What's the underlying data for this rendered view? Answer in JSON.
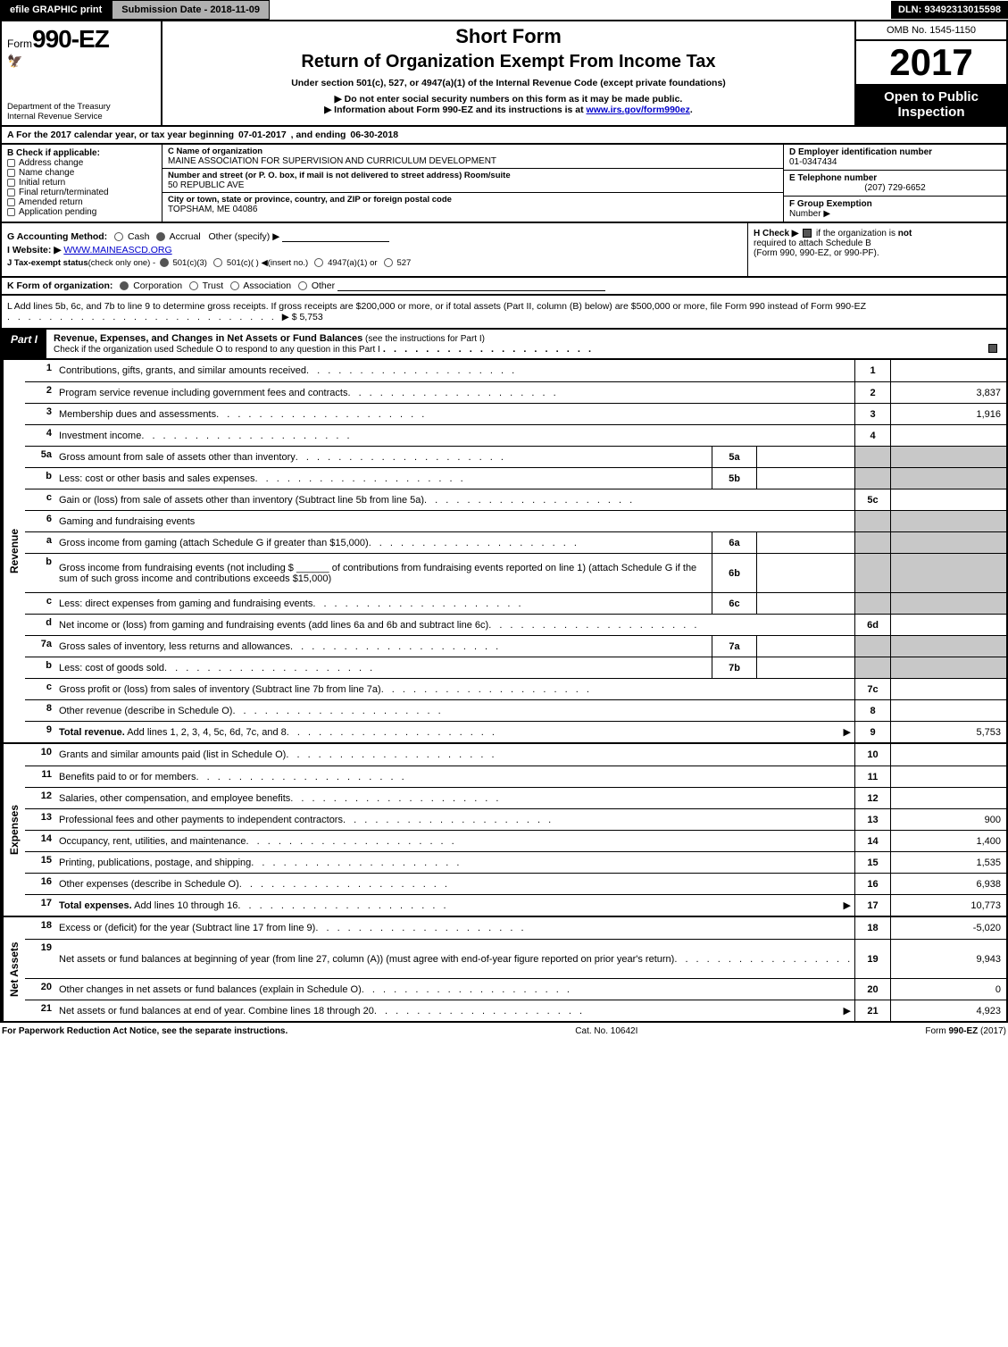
{
  "topbar": {
    "efile_btn": "efile GRAPHIC print",
    "submission_btn": "Submission Date - 2018-11-09",
    "dln": "DLN: 93492313015598"
  },
  "header": {
    "form_prefix": "Form",
    "form_number": "990-EZ",
    "dept1": "Department of the Treasury",
    "dept2": "Internal Revenue Service",
    "short_form": "Short Form",
    "title": "Return of Organization Exempt From Income Tax",
    "under_section": "Under section 501(c), 527, or 4947(a)(1) of the Internal Revenue Code (except private foundations)",
    "arrow1": "▶ Do not enter social security numbers on this form as it may be made public.",
    "arrow2_pre": "▶ Information about Form 990-EZ and its instructions is at ",
    "arrow2_link": "www.irs.gov/form990ez",
    "arrow2_post": ".",
    "omb": "OMB No. 1545-1150",
    "tax_year": "2017",
    "open_pub1": "Open to Public",
    "open_pub2": "Inspection"
  },
  "line_A": {
    "text_pre": "A  For the 2017 calendar year, or tax year beginning ",
    "ty_begin": "07-01-2017",
    "mid": " , and ending ",
    "ty_end": "06-30-2018"
  },
  "section_B": {
    "header": "B  Check if applicable:",
    "opts": [
      "Address change",
      "Name change",
      "Initial return",
      "Final return/terminated",
      "Amended return",
      "Application pending"
    ]
  },
  "section_C": {
    "name_lbl": "C Name of organization",
    "name_val": "MAINE ASSOCIATION FOR SUPERVISION AND CURRICULUM DEVELOPMENT",
    "street_lbl": "Number and street (or P. O. box, if mail is not delivered to street address)    Room/suite",
    "street_val": "50 REPUBLIC AVE",
    "city_lbl": "City or town, state or province, country, and ZIP or foreign postal code",
    "city_val": "TOPSHAM, ME  04086"
  },
  "section_right": {
    "D_lbl": "D Employer identification number",
    "D_val": "01-0347434",
    "E_lbl": "E Telephone number",
    "E_val": "(207) 729-6652",
    "F_lbl": "F Group Exemption",
    "F_lbl2": "Number  ▶"
  },
  "line_G": {
    "lbl": "G Accounting Method:",
    "cash": "Cash",
    "accrual": "Accrual",
    "other": "Other (specify) ▶"
  },
  "line_H": {
    "lbl": "H  Check ▶",
    "txt1": "if the organization is ",
    "not": "not",
    "txt2": "required to attach Schedule B",
    "txt3": "(Form 990, 990-EZ, or 990-PF)."
  },
  "line_I": {
    "lbl": "I Website: ▶",
    "val": "WWW.MAINEASCD.ORG"
  },
  "line_J": {
    "lbl": "J Tax-exempt status",
    "paren": "(check only one) - ",
    "o1": "501(c)(3)",
    "o2": "501(c)(  )",
    "o2_note": "◀(insert no.)",
    "o3": "4947(a)(1) or",
    "o4": "527"
  },
  "line_K": {
    "lbl": "K Form of organization:",
    "opts": [
      "Corporation",
      "Trust",
      "Association",
      "Other"
    ]
  },
  "line_L": {
    "text": "L Add lines 5b, 6c, and 7b to line 9 to determine gross receipts. If gross receipts are $200,000 or more, or if total assets (Part II, column (B) below) are $500,000 or more, file Form 990 instead of Form 990-EZ",
    "amount": "▶ $ 5,753"
  },
  "part1": {
    "tag": "Part I",
    "title": "Revenue, Expenses, and Changes in Net Assets or Fund Balances",
    "title_note": " (see the instructions for Part I)",
    "sub": "Check if the organization used Schedule O to respond to any question in this Part I"
  },
  "side": {
    "revenue": "Revenue",
    "expenses": "Expenses",
    "netassets": "Net Assets"
  },
  "lines_rev": [
    {
      "n": "1",
      "desc": "Contributions, gifts, grants, and similar amounts received",
      "ref": "1",
      "amt": ""
    },
    {
      "n": "2",
      "desc": "Program service revenue including government fees and contracts",
      "ref": "2",
      "amt": "3,837"
    },
    {
      "n": "3",
      "desc": "Membership dues and assessments",
      "ref": "3",
      "amt": "1,916"
    },
    {
      "n": "4",
      "desc": "Investment income",
      "ref": "4",
      "amt": ""
    },
    {
      "n": "5a",
      "desc": "Gross amount from sale of assets other than inventory",
      "sub": "5a",
      "subamt": ""
    },
    {
      "n": "b",
      "desc": "Less: cost or other basis and sales expenses",
      "sub": "5b",
      "subamt": ""
    },
    {
      "n": "c",
      "desc": "Gain or (loss) from sale of assets other than inventory (Subtract line 5b from line 5a)",
      "ref": "5c",
      "amt": ""
    },
    {
      "n": "6",
      "desc": "Gaming and fundraising events",
      "full": true
    },
    {
      "n": "a",
      "desc": "Gross income from gaming (attach Schedule G if greater than $15,000)",
      "sub": "6a",
      "subamt": ""
    },
    {
      "n": "b",
      "desc": "Gross income from fundraising events (not including $ ______ of contributions from fundraising events reported on line 1) (attach Schedule G if the sum of such gross income and contributions exceeds $15,000)",
      "sub": "6b",
      "subamt": "",
      "tall": true
    },
    {
      "n": "c",
      "desc": "Less: direct expenses from gaming and fundraising events",
      "sub": "6c",
      "subamt": ""
    },
    {
      "n": "d",
      "desc": "Net income or (loss) from gaming and fundraising events (add lines 6a and 6b and subtract line 6c)",
      "ref": "6d",
      "amt": ""
    },
    {
      "n": "7a",
      "desc": "Gross sales of inventory, less returns and allowances",
      "sub": "7a",
      "subamt": ""
    },
    {
      "n": "b",
      "desc": "Less: cost of goods sold",
      "sub": "7b",
      "subamt": ""
    },
    {
      "n": "c",
      "desc": "Gross profit or (loss) from sales of inventory (Subtract line 7b from line 7a)",
      "ref": "7c",
      "amt": ""
    },
    {
      "n": "8",
      "desc": "Other revenue (describe in Schedule O)",
      "ref": "8",
      "amt": ""
    },
    {
      "n": "9",
      "desc": "Total revenue. Add lines 1, 2, 3, 4, 5c, 6d, 7c, and 8",
      "ref": "9",
      "amt": "5,753",
      "bold": true,
      "arrow": true
    }
  ],
  "lines_exp": [
    {
      "n": "10",
      "desc": "Grants and similar amounts paid (list in Schedule O)",
      "ref": "10",
      "amt": ""
    },
    {
      "n": "11",
      "desc": "Benefits paid to or for members",
      "ref": "11",
      "amt": ""
    },
    {
      "n": "12",
      "desc": "Salaries, other compensation, and employee benefits",
      "ref": "12",
      "amt": ""
    },
    {
      "n": "13",
      "desc": "Professional fees and other payments to independent contractors",
      "ref": "13",
      "amt": "900"
    },
    {
      "n": "14",
      "desc": "Occupancy, rent, utilities, and maintenance",
      "ref": "14",
      "amt": "1,400"
    },
    {
      "n": "15",
      "desc": "Printing, publications, postage, and shipping",
      "ref": "15",
      "amt": "1,535"
    },
    {
      "n": "16",
      "desc": "Other expenses (describe in Schedule O)",
      "ref": "16",
      "amt": "6,938"
    },
    {
      "n": "17",
      "desc": "Total expenses. Add lines 10 through 16",
      "ref": "17",
      "amt": "10,773",
      "bold": true,
      "arrow": true
    }
  ],
  "lines_net": [
    {
      "n": "18",
      "desc": "Excess or (deficit) for the year (Subtract line 17 from line 9)",
      "ref": "18",
      "amt": "-5,020"
    },
    {
      "n": "19",
      "desc": "Net assets or fund balances at beginning of year (from line 27, column (A)) (must agree with end-of-year figure reported on prior year's return)",
      "ref": "19",
      "amt": "9,943",
      "tall": true
    },
    {
      "n": "20",
      "desc": "Other changes in net assets or fund balances (explain in Schedule O)",
      "ref": "20",
      "amt": "0"
    },
    {
      "n": "21",
      "desc": "Net assets or fund balances at end of year. Combine lines 18 through 20",
      "ref": "21",
      "amt": "4,923",
      "arrow": true
    }
  ],
  "footer": {
    "left": "For Paperwork Reduction Act Notice, see the separate instructions.",
    "mid": "Cat. No. 10642I",
    "right": "Form 990-EZ (2017)"
  }
}
